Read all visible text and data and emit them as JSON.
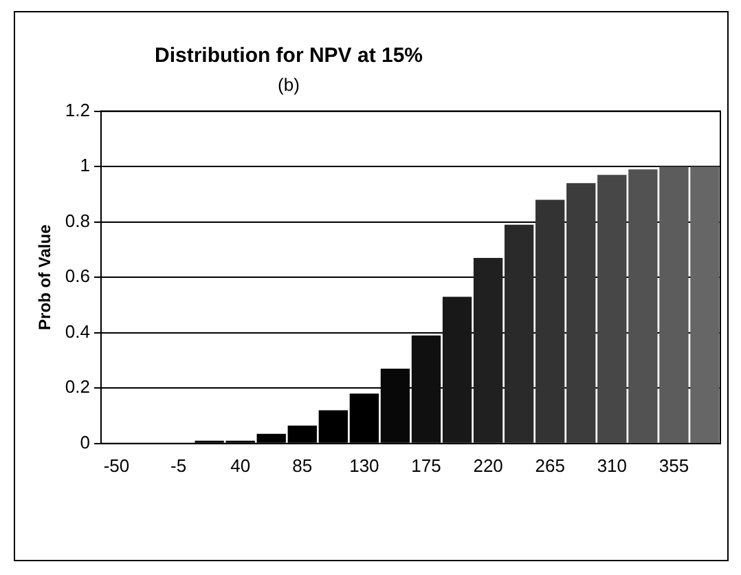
{
  "chart_data": {
    "type": "bar",
    "title": "Distribution for NPV at 15%",
    "subtitle": "(b)",
    "ylabel": "Prob of Value",
    "categories": [
      "-50",
      null,
      "-5",
      null,
      "40",
      null,
      "85",
      null,
      "130",
      null,
      "175",
      null,
      "220",
      null,
      "265",
      null,
      "310",
      null,
      "355",
      null
    ],
    "values": [
      0,
      0,
      0,
      0.01,
      0.01,
      0.035,
      0.065,
      0.12,
      0.18,
      0.27,
      0.39,
      0.53,
      0.67,
      0.79,
      0.88,
      0.94,
      0.97,
      0.99,
      1,
      1
    ],
    "colors": [
      "#000000",
      "#000000",
      "#000000",
      "#000000",
      "#000000",
      "#000000",
      "#000000",
      "#000000",
      "#000000",
      "#080808",
      "#101010",
      "#181818",
      "#202020",
      "#2a2a2a",
      "#333333",
      "#3c3c3c",
      "#474747",
      "#525252",
      "#5c5c5c",
      "#666666"
    ],
    "ylim": [
      0,
      1.2
    ],
    "yticks": [
      0,
      0.2,
      0.4,
      0.6,
      0.8,
      1,
      1.2
    ],
    "grid": "y",
    "legend": false
  }
}
